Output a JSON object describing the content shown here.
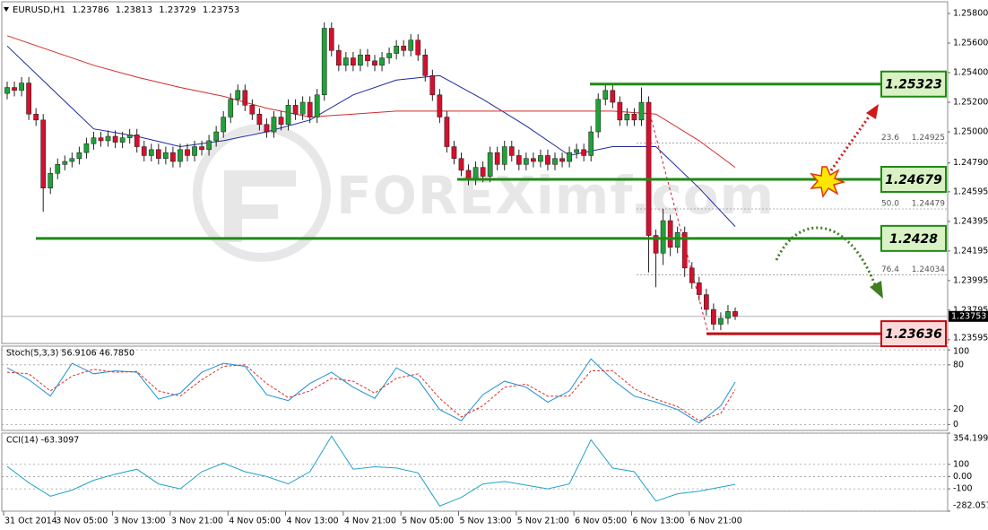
{
  "chart_data": [
    {
      "type": "candlestick",
      "symbol": "EURUSD,H1",
      "categories": [
        "31 Oct 2014",
        null,
        null,
        null,
        null,
        null,
        null,
        "3 Nov 05:00",
        null,
        null,
        null,
        null,
        null,
        null,
        null,
        "3 Nov 13:00",
        null,
        null,
        null,
        null,
        null,
        null,
        null,
        "3 Nov 21:00",
        null,
        null,
        null,
        null,
        null,
        null,
        null,
        "4 Nov 05:00",
        null,
        null,
        null,
        null,
        null,
        null,
        null,
        "4 Nov 13:00",
        null,
        null,
        null,
        null,
        null,
        null,
        null,
        "4 Nov 21:00",
        null,
        null,
        null,
        null,
        null,
        null,
        null,
        "5 Nov 05:00",
        null,
        null,
        null,
        null,
        null,
        null,
        null,
        "5 Nov 13:00",
        null,
        null,
        null,
        null,
        null,
        null,
        null,
        "5 Nov 21:00",
        null,
        null,
        null,
        null,
        null,
        null,
        null,
        "6 Nov 05:00",
        null,
        null,
        null,
        null,
        null,
        null,
        null,
        "6 Nov 13:00",
        null,
        null,
        null,
        null,
        null,
        null,
        null,
        "6 Nov 21:00",
        null,
        null,
        null,
        null,
        null,
        null
      ],
      "open": [
        1.2526,
        1.253,
        1.2528,
        1.2533,
        1.2512,
        1.2508,
        1.2462,
        1.2472,
        1.2478,
        1.248,
        1.2482,
        1.2486,
        1.2492,
        1.2496,
        1.2494,
        1.2497,
        1.2493,
        1.2496,
        1.2498,
        1.249,
        1.2484,
        1.2488,
        1.2482,
        1.2486,
        1.248,
        1.2488,
        1.2484,
        1.249,
        1.2488,
        1.2494,
        1.25,
        1.251,
        1.2522,
        1.2528,
        1.2518,
        1.2512,
        1.2505,
        1.25,
        1.251,
        1.2505,
        1.2518,
        1.2512,
        1.252,
        1.251,
        1.2525,
        1.257,
        1.2555,
        1.2545,
        1.255,
        1.2545,
        1.2552,
        1.2548,
        1.2545,
        1.255,
        1.2553,
        1.2558,
        1.2555,
        1.2562,
        1.2552,
        1.2538,
        1.2525,
        1.251,
        1.249,
        1.2482,
        1.2474,
        1.2468,
        1.2476,
        1.247,
        1.2486,
        1.2478,
        1.249,
        1.2484,
        1.2478,
        1.2482,
        1.248,
        1.2484,
        1.2478,
        1.2482,
        1.248,
        1.2486,
        1.2488,
        1.2484,
        1.25,
        1.2522,
        1.2528,
        1.252,
        1.2508,
        1.2512,
        1.2508,
        1.252,
        1.243,
        1.2418,
        1.244,
        1.2422,
        1.2432,
        1.2408,
        1.2398,
        1.239,
        1.238,
        1.237,
        1.2374,
        1.23786
      ],
      "high": [
        1.2534,
        1.2534,
        1.2537,
        1.2537,
        1.2516,
        1.2512,
        1.2476,
        1.2482,
        1.2484,
        1.2486,
        1.249,
        1.2496,
        1.25,
        1.25,
        1.2501,
        1.2501,
        1.25,
        1.2502,
        1.2502,
        1.2494,
        1.2492,
        1.2492,
        1.249,
        1.249,
        1.2492,
        1.2492,
        1.2494,
        1.2494,
        1.2498,
        1.2504,
        1.2514,
        1.2526,
        1.2532,
        1.2532,
        1.2522,
        1.2516,
        1.2509,
        1.2514,
        1.2514,
        1.2522,
        1.2522,
        1.2524,
        1.2524,
        1.2529,
        1.2574,
        1.2574,
        1.2559,
        1.2554,
        1.2554,
        1.2556,
        1.2556,
        1.2552,
        1.2554,
        1.2557,
        1.2562,
        1.2562,
        1.2566,
        1.2566,
        1.2556,
        1.2542,
        1.2529,
        1.2514,
        1.2494,
        1.2486,
        1.2478,
        1.248,
        1.248,
        1.249,
        1.249,
        1.2494,
        1.2494,
        1.2488,
        1.2486,
        1.2486,
        1.2488,
        1.2488,
        1.2486,
        1.2486,
        1.249,
        1.2492,
        1.2492,
        1.2504,
        1.2526,
        1.2532,
        1.2532,
        1.2524,
        1.2516,
        1.2516,
        1.253,
        1.2524,
        1.2434,
        1.2448,
        1.2444,
        1.2436,
        1.2436,
        1.2412,
        1.2402,
        1.2394,
        1.2384,
        1.2378,
        1.2383,
        1.23813
      ],
      "low": [
        1.2522,
        1.2524,
        1.2524,
        1.2508,
        1.2504,
        1.2446,
        1.2458,
        1.2468,
        1.2474,
        1.2476,
        1.2478,
        1.2482,
        1.2488,
        1.249,
        1.249,
        1.2489,
        1.2489,
        1.2492,
        1.2486,
        1.248,
        1.248,
        1.2478,
        1.2478,
        1.2476,
        1.2476,
        1.248,
        1.248,
        1.2484,
        1.2484,
        1.249,
        1.2496,
        1.2506,
        1.2518,
        1.2514,
        1.2508,
        1.2501,
        1.2496,
        1.2496,
        1.2501,
        1.2501,
        1.2508,
        1.2508,
        1.2506,
        1.2506,
        1.2521,
        1.2551,
        1.2541,
        1.2541,
        1.2541,
        1.2541,
        1.2544,
        1.2541,
        1.2541,
        1.2546,
        1.2549,
        1.2551,
        1.2551,
        1.2548,
        1.2534,
        1.2521,
        1.2506,
        1.2486,
        1.2478,
        1.247,
        1.2464,
        1.2464,
        1.2466,
        1.2466,
        1.2474,
        1.2474,
        1.248,
        1.2474,
        1.2474,
        1.2476,
        1.2476,
        1.2474,
        1.2474,
        1.2476,
        1.2476,
        1.2482,
        1.248,
        1.248,
        1.2496,
        1.2518,
        1.2516,
        1.2504,
        1.2504,
        1.2504,
        1.2504,
        1.2405,
        1.2395,
        1.241,
        1.2416,
        1.2418,
        1.2402,
        1.2394,
        1.2386,
        1.2376,
        1.2366,
        1.2366,
        1.237,
        1.23729
      ],
      "close": [
        1.253,
        1.2528,
        1.2533,
        1.2512,
        1.2508,
        1.2462,
        1.2472,
        1.2478,
        1.248,
        1.2482,
        1.2486,
        1.2492,
        1.2496,
        1.2494,
        1.2497,
        1.2493,
        1.2496,
        1.2498,
        1.249,
        1.2484,
        1.2488,
        1.2482,
        1.2486,
        1.248,
        1.2488,
        1.2484,
        1.249,
        1.2488,
        1.2494,
        1.25,
        1.251,
        1.2522,
        1.2528,
        1.2518,
        1.2512,
        1.2505,
        1.25,
        1.251,
        1.2505,
        1.2518,
        1.2512,
        1.252,
        1.251,
        1.2525,
        1.257,
        1.2555,
        1.2545,
        1.255,
        1.2545,
        1.2552,
        1.2548,
        1.2545,
        1.255,
        1.2553,
        1.2558,
        1.2555,
        1.2562,
        1.2552,
        1.2538,
        1.2525,
        1.251,
        1.249,
        1.2482,
        1.2474,
        1.2468,
        1.2476,
        1.247,
        1.2486,
        1.2478,
        1.249,
        1.2484,
        1.2478,
        1.2482,
        1.248,
        1.2484,
        1.2478,
        1.2482,
        1.248,
        1.2486,
        1.2488,
        1.2484,
        1.25,
        1.2522,
        1.2528,
        1.252,
        1.2508,
        1.2512,
        1.2508,
        1.252,
        1.243,
        1.2418,
        1.244,
        1.2422,
        1.2432,
        1.2408,
        1.2398,
        1.239,
        1.238,
        1.237,
        1.2374,
        1.23786,
        1.23753
      ],
      "up_color": "#21a038",
      "down_color": "#d4102e",
      "ylim": [
        1.2357,
        1.25879
      ],
      "yticks": [
        {
          "value": 1.258,
          "label": "1.25800"
        },
        {
          "value": 1.256,
          "label": "1.25600"
        },
        {
          "value": 1.254,
          "label": "1.25400"
        },
        {
          "value": 1.252,
          "label": "1.25200"
        },
        {
          "value": 1.25,
          "label": "1.25000"
        },
        {
          "value": 1.2479,
          "label": "1.24790"
        },
        {
          "value": 1.24595,
          "label": "1.24595"
        },
        {
          "value": 1.24395,
          "label": "1.24395"
        },
        {
          "value": 1.24195,
          "label": "1.24195"
        },
        {
          "value": 1.23995,
          "label": "1.23995"
        },
        {
          "value": 1.23795,
          "label": "1.23795"
        },
        {
          "value": 1.23595,
          "label": "1.23595"
        }
      ],
      "grid": false,
      "moving_averages": [
        {
          "color": "#1c2a9c",
          "x": [
            0,
            6,
            12,
            18,
            24,
            30,
            36,
            42,
            48,
            54,
            60,
            66,
            72,
            78,
            84,
            90,
            96,
            101
          ],
          "values": [
            1.2558,
            1.253,
            1.2502,
            1.2497,
            1.249,
            1.2494,
            1.25,
            1.2508,
            1.2525,
            1.2535,
            1.2538,
            1.2522,
            1.2504,
            1.2484,
            1.249,
            1.249,
            1.2462,
            1.2436
          ]
        },
        {
          "color": "#d42a2a",
          "x": [
            0,
            6,
            12,
            18,
            24,
            30,
            36,
            42,
            48,
            54,
            60,
            66,
            72,
            78,
            84,
            90,
            96,
            101
          ],
          "values": [
            1.2565,
            1.2555,
            1.2545,
            1.2537,
            1.253,
            1.2524,
            1.2516,
            1.251,
            1.2512,
            1.2514,
            1.2514,
            1.2514,
            1.2514,
            1.2514,
            1.2514,
            1.2512,
            1.2494,
            1.2476
          ]
        }
      ],
      "levels": [
        {
          "value": 1.25323,
          "color": "#1f8a13",
          "fill": "#d9f2c4"
        },
        {
          "value": 1.24679,
          "color": "#1f8a13",
          "fill": "#d9f2c4"
        },
        {
          "value": 1.2428,
          "color": "#1f8a13",
          "fill": "#d9f2c4"
        },
        {
          "value": 1.23636,
          "color": "#c40a12",
          "fill": "#fcd9d9"
        }
      ],
      "fibonacci": [
        {
          "label": "23.6",
          "value": 1.24925
        },
        {
          "label": "50.0",
          "value": 1.24479
        },
        {
          "label": "76.4",
          "value": 1.24034
        }
      ],
      "watermark": "FOREXimf.com"
    },
    {
      "type": "line",
      "title": "Stoch(5,3,3) 56.9106 46.7850",
      "x": [
        0,
        3,
        6,
        9,
        12,
        15,
        18,
        21,
        24,
        27,
        30,
        33,
        36,
        39,
        42,
        45,
        48,
        51,
        54,
        57,
        60,
        63,
        66,
        69,
        72,
        75,
        78,
        81,
        84,
        87,
        90,
        93,
        96,
        99,
        101
      ],
      "series": [
        {
          "color": "#1e8fd6",
          "dash": false,
          "values": [
            76,
            60,
            38,
            82,
            68,
            72,
            70,
            34,
            42,
            70,
            82,
            78,
            40,
            32,
            55,
            70,
            50,
            35,
            76,
            60,
            20,
            5,
            40,
            58,
            50,
            30,
            45,
            88,
            60,
            38,
            30,
            20,
            2,
            25,
            56.9106
          ]
        },
        {
          "color": "#e0302a",
          "dash": true,
          "values": [
            70,
            68,
            45,
            65,
            74,
            70,
            71,
            45,
            38,
            60,
            78,
            80,
            55,
            36,
            45,
            62,
            58,
            42,
            62,
            68,
            35,
            10,
            25,
            50,
            54,
            38,
            38,
            72,
            72,
            48,
            34,
            24,
            5,
            15,
            46.785
          ]
        }
      ],
      "ylim": [
        -8,
        105
      ],
      "yticks": [
        100,
        80,
        20,
        0
      ],
      "grid": true
    },
    {
      "type": "line",
      "title": "CCI(14) -63.3097",
      "x": [
        0,
        3,
        6,
        9,
        12,
        15,
        18,
        21,
        24,
        27,
        30,
        33,
        36,
        39,
        42,
        45,
        48,
        51,
        54,
        57,
        60,
        63,
        66,
        69,
        72,
        75,
        78,
        81,
        84,
        87,
        90,
        93,
        96,
        99,
        101
      ],
      "series": [
        {
          "color": "#1fa3c9",
          "dash": false,
          "values": [
            83,
            -50,
            -160,
            -110,
            -30,
            20,
            60,
            -60,
            -100,
            40,
            110,
            40,
            0,
            -60,
            40,
            330,
            60,
            80,
            70,
            30,
            -240,
            -170,
            -60,
            -40,
            -70,
            -100,
            -60,
            300,
            70,
            40,
            -200,
            -140,
            -120,
            -85,
            -63.3097
          ]
        }
      ],
      "ylim": [
        -282.0577,
        354.1999
      ],
      "yticks": [
        354.1999,
        100,
        {
          "value": 0,
          "label": "0.00"
        },
        -100,
        -282.0577
      ],
      "grid": true
    }
  ]
}
